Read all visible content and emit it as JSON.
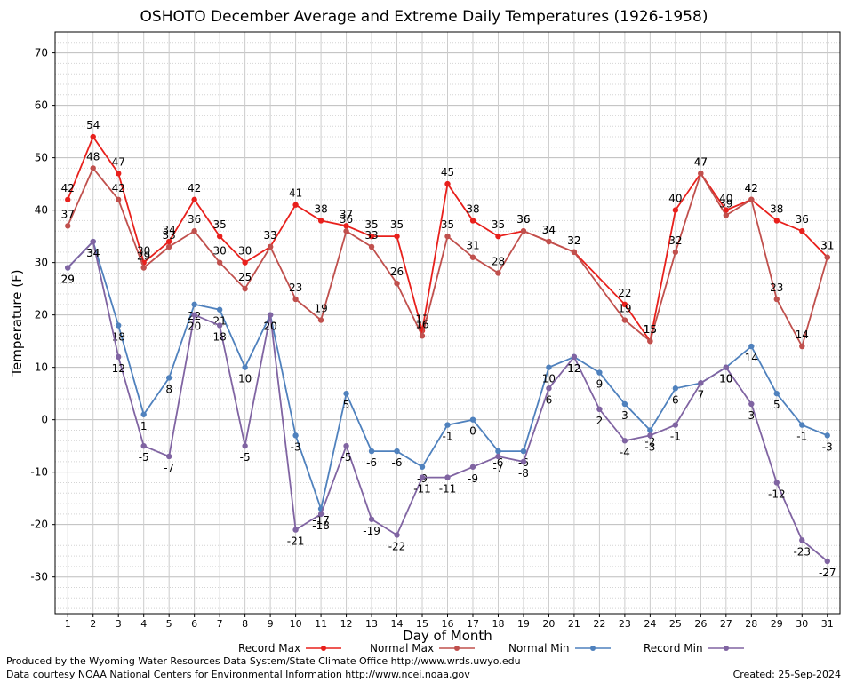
{
  "chart_data": {
    "type": "line",
    "title": "OSHOTO December Average and Extreme Daily Temperatures (1926-1958)",
    "xlabel": "Day of Month",
    "ylabel": "Temperature (F)",
    "ylim": [
      -37,
      74
    ],
    "xlim": [
      0.5,
      31.5
    ],
    "yticks": [
      -30,
      -20,
      -10,
      0,
      10,
      20,
      30,
      40,
      50,
      60,
      70
    ],
    "x": [
      1,
      2,
      3,
      4,
      5,
      6,
      7,
      8,
      9,
      10,
      11,
      12,
      13,
      14,
      15,
      16,
      17,
      18,
      19,
      20,
      21,
      22,
      23,
      24,
      25,
      26,
      27,
      28,
      29,
      30,
      31
    ],
    "grid": true,
    "legend_position": "bottom",
    "series": [
      {
        "name": "Record Max",
        "color": "#e8201c",
        "values": [
          42,
          54,
          47,
          30,
          34,
          42,
          35,
          30,
          33,
          41,
          38,
          37,
          35,
          35,
          17,
          45,
          38,
          35,
          36,
          34,
          32,
          null,
          22,
          15,
          40,
          47,
          40,
          42,
          38,
          36,
          31
        ]
      },
      {
        "name": "Normal Max",
        "color": "#c0504d",
        "values": [
          37,
          48,
          42,
          29,
          33,
          36,
          30,
          25,
          33,
          23,
          19,
          36,
          33,
          26,
          16,
          35,
          31,
          28,
          36,
          34,
          32,
          null,
          19,
          15,
          32,
          47,
          39,
          42,
          23,
          14,
          31
        ]
      },
      {
        "name": "Normal Min",
        "color": "#4f81bd",
        "values": [
          29,
          34,
          18,
          1,
          8,
          22,
          21,
          10,
          20,
          -3,
          -17,
          5,
          -6,
          -6,
          -9,
          -1,
          0,
          -6,
          -6,
          10,
          12,
          9,
          3,
          -2,
          6,
          7,
          10,
          14,
          5,
          -1,
          -3
        ]
      },
      {
        "name": "Record Min",
        "color": "#8064a2",
        "values": [
          29,
          34,
          12,
          -5,
          -7,
          20,
          18,
          -5,
          20,
          -21,
          -18,
          -5,
          -19,
          -22,
          -11,
          -11,
          -9,
          -7,
          -8,
          6,
          12,
          2,
          -4,
          -3,
          -1,
          7,
          10,
          3,
          -12,
          -23,
          -27
        ]
      }
    ]
  },
  "footer": {
    "line1": "Produced by the Wyoming Water Resources Data System/State Climate Office http://www.wrds.uwyo.edu",
    "line2": "Data courtesy NOAA National Centers for Environmental Information http://www.ncei.noaa.gov",
    "created": "Created:  25-Sep-2024"
  }
}
